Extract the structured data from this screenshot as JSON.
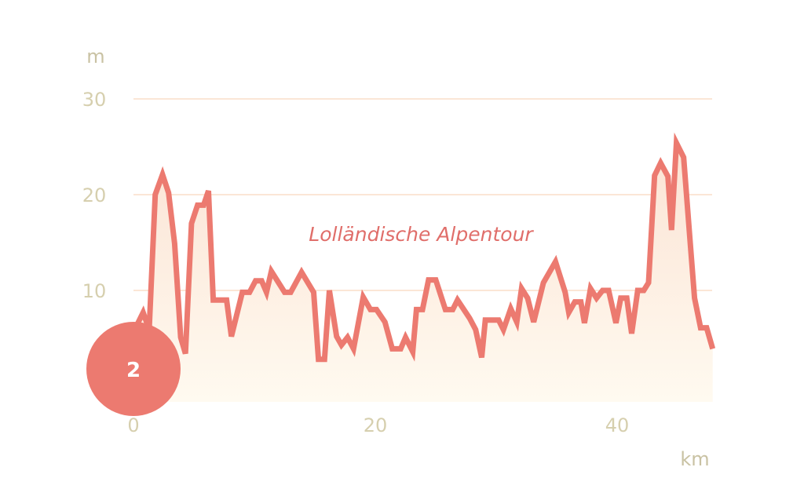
{
  "chart_data": {
    "type": "area",
    "title": "Lolländische Alpentour",
    "xlabel": "km",
    "ylabel": "m",
    "xlim": [
      0,
      48
    ],
    "ylim": [
      0,
      30
    ],
    "x_ticks": [
      0,
      20,
      40
    ],
    "y_ticks": [
      10,
      20,
      30
    ],
    "grid": true,
    "colors": {
      "line": "#ec7a70",
      "fill_top": "#fbe3d4",
      "fill_bottom": "#fffaf0",
      "grid": "#fbe6d6",
      "tick": "#d6cfae"
    },
    "series": [
      {
        "x": [
          0.1,
          0.8,
          1.3,
          1.8,
          2.4,
          2.9,
          3.4,
          3.9,
          4.3,
          4.8,
          5.3,
          5.8,
          6.2,
          6.6,
          7.7,
          8.1,
          9.0,
          9.6,
          10.1,
          10.6,
          11.0,
          11.4,
          12.5,
          13.0,
          13.9,
          14.9,
          15.3,
          15.8,
          16.2,
          16.8,
          17.2,
          17.7,
          18.2,
          19.0,
          19.6,
          20.1,
          20.8,
          21.4,
          22.1,
          22.5,
          23.1,
          23.4,
          23.9,
          24.4,
          25.0,
          25.8,
          26.4,
          26.8,
          27.8,
          28.3,
          28.8,
          29.1,
          30.2,
          30.6,
          31.2,
          31.7,
          32.1,
          32.6,
          33.1,
          33.9,
          34.9,
          35.7,
          36.0,
          36.5,
          37.0,
          37.3,
          37.8,
          38.3,
          38.8,
          39.3,
          39.9,
          40.3,
          40.8,
          41.2,
          41.7,
          42.2,
          42.6,
          43.1,
          43.6,
          44.2,
          44.5,
          44.9,
          45.5,
          46.0,
          46.4,
          46.9,
          47.4,
          47.9
        ],
        "y": [
          5.9,
          7.7,
          5.9,
          20.0,
          22.1,
          20.2,
          14.9,
          5.1,
          3.4,
          17.0,
          18.9,
          18.9,
          20.4,
          9.0,
          9.0,
          5.2,
          9.8,
          9.8,
          11.0,
          11.0,
          9.8,
          12.0,
          9.8,
          9.8,
          11.9,
          9.8,
          2.8,
          2.8,
          10.0,
          5.2,
          4.3,
          5.1,
          3.9,
          9.3,
          8.0,
          8.0,
          6.7,
          3.9,
          3.9,
          5.1,
          3.6,
          8.0,
          8.0,
          11.1,
          11.1,
          8.0,
          8.0,
          9.0,
          7.1,
          5.9,
          3.0,
          6.9,
          6.9,
          5.9,
          8.1,
          6.7,
          10.2,
          9.2,
          6.7,
          10.8,
          13.0,
          9.8,
          7.7,
          8.8,
          8.8,
          6.6,
          10.2,
          9.2,
          10.0,
          10.0,
          6.6,
          9.2,
          9.2,
          5.5,
          10.0,
          10.0,
          10.8,
          22.0,
          23.3,
          21.9,
          16.3,
          25.4,
          23.9,
          15.7,
          9.2,
          6.1,
          6.1,
          3.9
        ]
      }
    ]
  },
  "badge": {
    "label": "2",
    "color": "#ec7a70"
  }
}
